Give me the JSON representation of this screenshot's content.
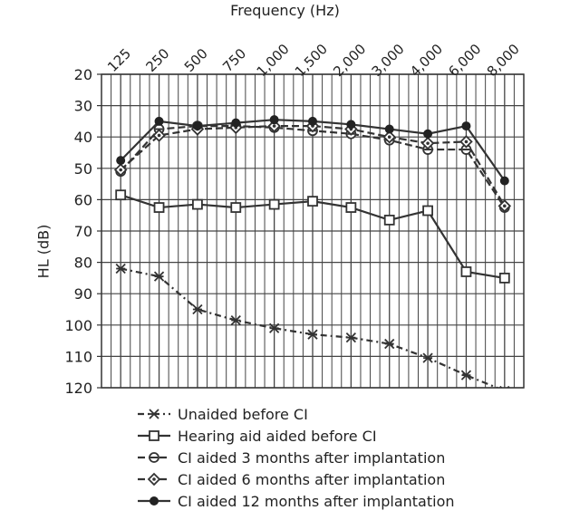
{
  "chart_data": {
    "type": "line",
    "xlabel": "Frequency (Hz)",
    "ylabel": "HL (dB)",
    "categories": [
      "125",
      "250",
      "500",
      "750",
      "1,000",
      "1,500",
      "2,000",
      "3,000",
      "4,000",
      "6,000",
      "8,000"
    ],
    "ylim": [
      20,
      120
    ],
    "y_inverted": true,
    "yticks": [
      20,
      30,
      40,
      50,
      60,
      70,
      80,
      90,
      100,
      110,
      120
    ],
    "grid": true,
    "legend_position": "bottom",
    "series": [
      {
        "name": "Unaided before CI",
        "style": "dash-dot",
        "marker": "asterisk",
        "values": [
          82,
          84.5,
          95,
          98.5,
          101,
          103,
          104,
          106,
          110.5,
          116,
          121
        ]
      },
      {
        "name": "Hearing aid aided before CI",
        "style": "solid",
        "marker": "square",
        "values": [
          58.5,
          62.5,
          61.5,
          62.5,
          61.5,
          60.5,
          62.5,
          66.5,
          63.5,
          83,
          85
        ]
      },
      {
        "name": "CI aided 3 months after implantation",
        "style": "dashed",
        "marker": "circle-dot",
        "values": [
          51,
          37.5,
          36.5,
          36.5,
          37,
          38,
          39,
          41,
          44,
          44,
          62.5
        ]
      },
      {
        "name": "CI aided 6 months after implantation",
        "style": "dashed",
        "marker": "diamond",
        "values": [
          50.5,
          39.5,
          37.5,
          37,
          36.5,
          36.5,
          37.5,
          40,
          42,
          41.5,
          62
        ]
      },
      {
        "name": "CI aided 12 months after implantation",
        "style": "solid",
        "marker": "filled-circle",
        "values": [
          47.5,
          35,
          36.5,
          35.5,
          34.5,
          35,
          36,
          37.5,
          39,
          36.5,
          54
        ]
      }
    ]
  }
}
